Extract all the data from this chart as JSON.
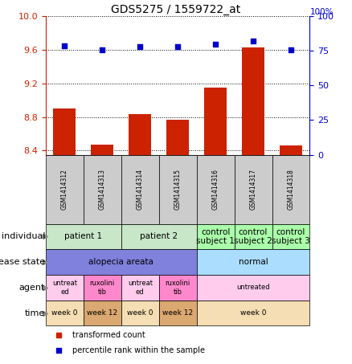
{
  "title": "GDS5275 / 1559722_at",
  "samples": [
    "GSM1414312",
    "GSM1414313",
    "GSM1414314",
    "GSM1414315",
    "GSM1414316",
    "GSM1414317",
    "GSM1414318"
  ],
  "transformed_counts": [
    8.9,
    8.47,
    8.83,
    8.77,
    9.15,
    9.63,
    8.46
  ],
  "percentile_ranks": [
    79,
    76,
    78,
    78,
    80,
    82,
    76
  ],
  "ylim_left": [
    8.35,
    10.0
  ],
  "ylim_right": [
    0,
    100
  ],
  "yticks_left": [
    8.4,
    8.8,
    9.2,
    9.6,
    10.0
  ],
  "yticks_right": [
    0,
    25,
    50,
    75,
    100
  ],
  "bar_color": "#cc2200",
  "dot_color": "#0000cc",
  "bar_width": 0.6,
  "row_labels": [
    "individual",
    "disease state",
    "agent",
    "time"
  ],
  "individual_data": [
    {
      "label": "patient 1",
      "span": [
        0,
        2
      ],
      "color": "#c8e6c8"
    },
    {
      "label": "patient 2",
      "span": [
        2,
        4
      ],
      "color": "#c8e6c8"
    },
    {
      "label": "control\nsubject 1",
      "span": [
        4,
        5
      ],
      "color": "#aaffaa"
    },
    {
      "label": "control\nsubject 2",
      "span": [
        5,
        6
      ],
      "color": "#aaffaa"
    },
    {
      "label": "control\nsubject 3",
      "span": [
        6,
        7
      ],
      "color": "#aaffaa"
    }
  ],
  "disease_data": [
    {
      "label": "alopecia areata",
      "span": [
        0,
        4
      ],
      "color": "#8080dd"
    },
    {
      "label": "normal",
      "span": [
        4,
        7
      ],
      "color": "#aaddff"
    }
  ],
  "agent_data": [
    {
      "label": "untreat\ned",
      "span": [
        0,
        1
      ],
      "color": "#ffccee"
    },
    {
      "label": "ruxolini\ntib",
      "span": [
        1,
        2
      ],
      "color": "#ff88cc"
    },
    {
      "label": "untreat\ned",
      "span": [
        2,
        3
      ],
      "color": "#ffccee"
    },
    {
      "label": "ruxolini\ntib",
      "span": [
        3,
        4
      ],
      "color": "#ff88cc"
    },
    {
      "label": "untreated",
      "span": [
        4,
        7
      ],
      "color": "#ffccee"
    }
  ],
  "time_data": [
    {
      "label": "week 0",
      "span": [
        0,
        1
      ],
      "color": "#f5deb3"
    },
    {
      "label": "week 12",
      "span": [
        1,
        2
      ],
      "color": "#daa870"
    },
    {
      "label": "week 0",
      "span": [
        2,
        3
      ],
      "color": "#f5deb3"
    },
    {
      "label": "week 12",
      "span": [
        3,
        4
      ],
      "color": "#daa870"
    },
    {
      "label": "week 0",
      "span": [
        4,
        7
      ],
      "color": "#f5deb3"
    }
  ],
  "legend_bar_color": "#cc2200",
  "legend_dot_color": "#0000cc",
  "legend_bar_label": "transformed count",
  "legend_dot_label": "percentile rank within the sample",
  "sample_box_color": "#cccccc"
}
